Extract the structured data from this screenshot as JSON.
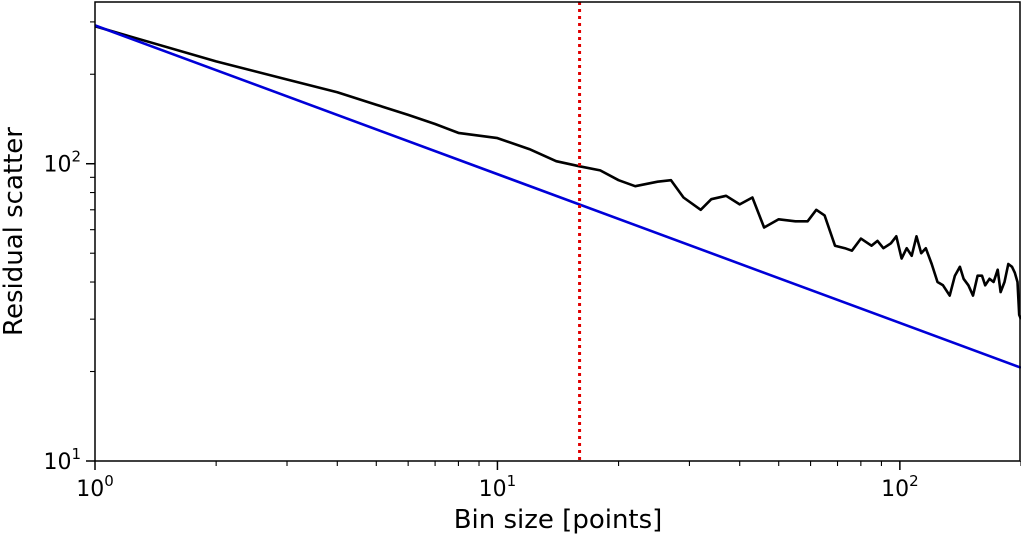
{
  "chart_data": {
    "type": "line",
    "xlabel": "Bin size [points]",
    "ylabel": "Residual scatter",
    "xscale": "log",
    "yscale": "log",
    "xlim": [
      1,
      200
    ],
    "ylim": [
      10,
      350
    ],
    "grid": false,
    "x_ticks": [
      {
        "base": "10",
        "exp": "0",
        "value": 1
      },
      {
        "base": "10",
        "exp": "1",
        "value": 10
      },
      {
        "base": "10",
        "exp": "2",
        "value": 100
      }
    ],
    "y_ticks": [
      {
        "base": "10",
        "exp": "1",
        "value": 10
      },
      {
        "base": "10",
        "exp": "2",
        "value": 100
      }
    ],
    "vline": {
      "x": 16,
      "color": "#e00000",
      "style": "dotted"
    },
    "series": [
      {
        "color": "#000000",
        "points": [
          [
            1,
            290
          ],
          [
            2,
            221
          ],
          [
            3,
            192
          ],
          [
            4,
            174
          ],
          [
            5,
            158
          ],
          [
            6,
            146
          ],
          [
            7,
            136
          ],
          [
            8,
            127
          ],
          [
            10,
            122
          ],
          [
            12,
            112
          ],
          [
            14,
            102
          ],
          [
            16,
            98
          ],
          [
            18,
            95
          ],
          [
            20,
            88
          ],
          [
            22,
            84
          ],
          [
            25,
            87
          ],
          [
            27,
            88
          ],
          [
            29,
            77
          ],
          [
            32,
            70
          ],
          [
            34,
            76
          ],
          [
            37,
            78
          ],
          [
            40,
            73
          ],
          [
            43,
            77
          ],
          [
            46,
            61
          ],
          [
            50,
            65
          ],
          [
            55,
            64
          ],
          [
            59,
            64
          ],
          [
            62,
            70
          ],
          [
            65,
            67
          ],
          [
            69,
            53
          ],
          [
            73,
            52
          ],
          [
            76,
            51
          ],
          [
            80,
            56
          ],
          [
            85,
            53
          ],
          [
            88,
            55
          ],
          [
            91,
            52
          ],
          [
            95,
            54
          ],
          [
            98,
            57
          ],
          [
            101,
            48
          ],
          [
            104,
            52
          ],
          [
            107,
            49
          ],
          [
            110,
            57
          ],
          [
            113,
            50
          ],
          [
            116,
            52
          ],
          [
            120,
            46
          ],
          [
            124,
            40
          ],
          [
            128,
            39
          ],
          [
            133,
            36
          ],
          [
            137,
            42
          ],
          [
            141,
            45
          ],
          [
            144,
            41
          ],
          [
            148,
            39
          ],
          [
            152,
            36
          ],
          [
            156,
            42
          ],
          [
            160,
            42
          ],
          [
            163,
            39
          ],
          [
            167,
            41
          ],
          [
            171,
            40
          ],
          [
            175,
            44
          ],
          [
            178,
            37
          ],
          [
            182,
            40
          ],
          [
            186,
            46
          ],
          [
            190,
            45
          ],
          [
            193,
            43
          ],
          [
            196,
            40
          ],
          [
            198,
            31
          ],
          [
            200,
            30
          ]
        ]
      },
      {
        "color": "#0000d8",
        "points": [
          [
            1,
            292
          ],
          [
            200,
            20.6
          ]
        ]
      }
    ]
  }
}
